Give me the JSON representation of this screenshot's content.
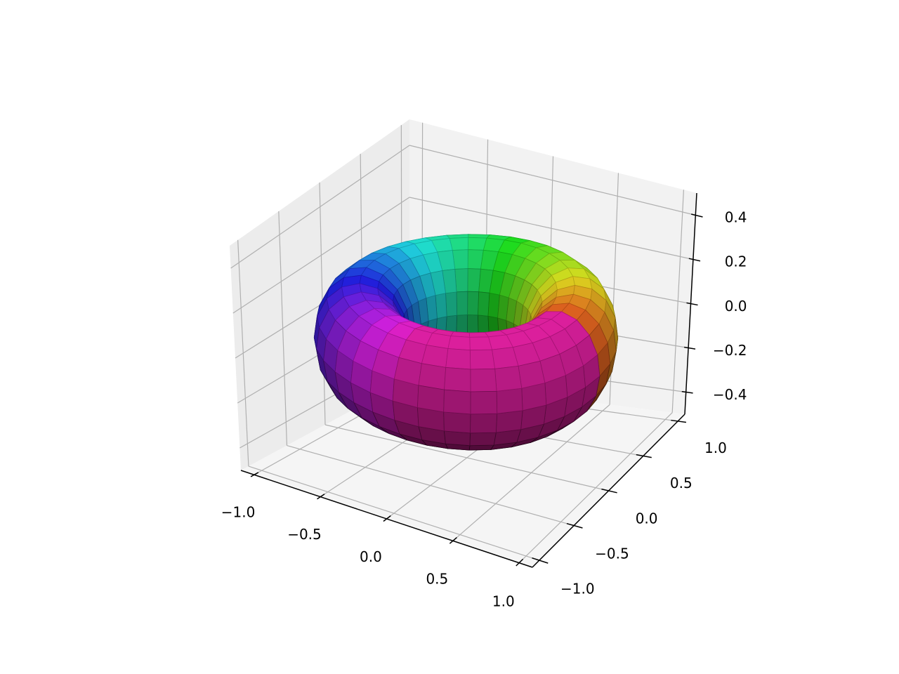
{
  "chart_data": {
    "type": "voxels",
    "xlim": [
      -1.1,
      1.1
    ],
    "ylim": [
      -1.1,
      1.1
    ],
    "zlim": [
      -0.5,
      0.5
    ],
    "xticks": [
      {
        "value": -1,
        "label": "−1.0"
      },
      {
        "value": -0.5,
        "label": "−0.5"
      },
      {
        "value": 0,
        "label": "0.0"
      },
      0.5,
      {
        "value": 1,
        "label": "1.0"
      }
    ],
    "yticks": [
      {
        "value": -1,
        "label": "−1.0"
      },
      {
        "value": -0.5,
        "label": "−0.5"
      },
      {
        "value": 0,
        "label": "0.0"
      },
      0.5,
      {
        "value": 1,
        "label": "1.0"
      }
    ],
    "zticks": [
      {
        "value": -0.4,
        "label": "−0.4"
      },
      {
        "value": -0.2,
        "label": "−0.2"
      },
      {
        "value": 0,
        "label": "0.0"
      },
      0.2,
      0.4
    ],
    "grid": true
  }
}
